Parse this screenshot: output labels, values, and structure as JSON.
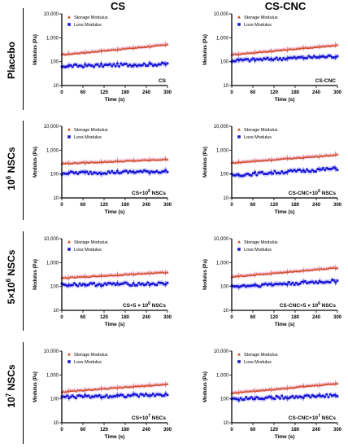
{
  "figure": {
    "columns": [
      "CS",
      "CS-CNC"
    ],
    "rows": [
      {
        "base": "Placebo",
        "sup": "",
        "suffix": ""
      },
      {
        "base": "10",
        "sup": "6",
        "suffix": " NSCs"
      },
      {
        "base": "5×10",
        "sup": "6",
        "suffix": " NSCs"
      },
      {
        "base": "10",
        "sup": "7",
        "suffix": " NSCs"
      }
    ]
  },
  "colors": {
    "storage": "#d04a22",
    "storage_band": "#f2b8e6",
    "loss": "#1a17d6",
    "loss_band": "#b4b4ff"
  },
  "chart_data": [
    {
      "type": "scatter",
      "panel_label": {
        "base": "CS",
        "sup": ""
      },
      "xlabel": "Time (s)",
      "ylabel": "Modulus (Pa)",
      "xlim": [
        0,
        300
      ],
      "ylim": [
        10,
        10000
      ],
      "yscale": "log",
      "xticks": [
        0,
        60,
        120,
        180,
        240,
        300
      ],
      "yticks": [
        10,
        100,
        1000,
        10000
      ],
      "ytick_labels": [
        "10",
        "100",
        "1,000",
        "10,000"
      ],
      "legend": "top-left",
      "series": [
        {
          "name": "Storage Modulus",
          "marker": "triangle",
          "start": 200,
          "end": 520
        },
        {
          "name": "Loss Modulus",
          "marker": "square",
          "start": 65,
          "end": 80
        }
      ]
    },
    {
      "type": "scatter",
      "panel_label": {
        "base": "CS-CNC",
        "sup": ""
      },
      "xlabel": "Time (s)",
      "ylabel": "Modulus (Pa)",
      "xlim": [
        0,
        300
      ],
      "ylim": [
        10,
        10000
      ],
      "yscale": "log",
      "xticks": [
        0,
        60,
        120,
        180,
        240,
        300
      ],
      "yticks": [
        10,
        100,
        1000,
        10000
      ],
      "ytick_labels": [
        "10",
        "100",
        "1,000",
        "10,000"
      ],
      "legend": "top-left",
      "series": [
        {
          "name": "Storage Modulus",
          "marker": "triangle",
          "start": 200,
          "end": 500
        },
        {
          "name": "Loss Modulus",
          "marker": "square",
          "start": 110,
          "end": 170
        }
      ]
    },
    {
      "type": "scatter",
      "panel_label": {
        "base": "CS+10",
        "sup": "6",
        "suffix": " NSCs"
      },
      "xlabel": "Time (s)",
      "ylabel": "Modulus (Pa)",
      "xlim": [
        0,
        300
      ],
      "ylim": [
        10,
        10000
      ],
      "yscale": "log",
      "xticks": [
        0,
        60,
        120,
        180,
        240,
        300
      ],
      "yticks": [
        10,
        100,
        1000,
        10000
      ],
      "ytick_labels": [
        "10",
        "100",
        "1,000",
        "10,000"
      ],
      "legend": "top-left",
      "series": [
        {
          "name": "Storage Modulus",
          "marker": "triangle",
          "start": 280,
          "end": 420
        },
        {
          "name": "Loss Modulus",
          "marker": "square",
          "start": 110,
          "end": 130
        }
      ]
    },
    {
      "type": "scatter",
      "panel_label": {
        "base": "CS-CNC+10",
        "sup": "6",
        "suffix": " NSCs"
      },
      "xlabel": "Time (s)",
      "ylabel": "Modulus (Pa)",
      "xlim": [
        0,
        300
      ],
      "ylim": [
        10,
        10000
      ],
      "yscale": "log",
      "xticks": [
        0,
        60,
        120,
        180,
        240,
        300
      ],
      "yticks": [
        10,
        100,
        1000,
        10000
      ],
      "ytick_labels": [
        "10",
        "100",
        "1,000",
        "10,000"
      ],
      "legend": "top-left",
      "series": [
        {
          "name": "Storage Modulus",
          "marker": "triangle",
          "start": 300,
          "end": 650
        },
        {
          "name": "Loss Modulus",
          "marker": "square",
          "start": 90,
          "end": 170
        }
      ]
    },
    {
      "type": "scatter",
      "panel_label": {
        "base": "CS+5 × 10",
        "sup": "6",
        "suffix": " NSCs"
      },
      "xlabel": "Time (s)",
      "ylabel": "Modulus (Pa)",
      "xlim": [
        0,
        300
      ],
      "ylim": [
        10,
        10000
      ],
      "yscale": "log",
      "xticks": [
        0,
        60,
        120,
        180,
        240,
        300
      ],
      "yticks": [
        10,
        100,
        1000,
        10000
      ],
      "ytick_labels": [
        "10",
        "100",
        "1,000",
        "10,000"
      ],
      "legend": "top-left",
      "series": [
        {
          "name": "Storage Modulus",
          "marker": "triangle",
          "start": 230,
          "end": 400
        },
        {
          "name": "Loss Modulus",
          "marker": "square",
          "start": 120,
          "end": 130
        }
      ]
    },
    {
      "type": "scatter",
      "panel_label": {
        "base": "CS-CNC+5 × 10",
        "sup": "6",
        "suffix": " NSCs"
      },
      "xlabel": "Time (s)",
      "ylabel": "Modulus (Pa)",
      "xlim": [
        0,
        300
      ],
      "ylim": [
        10,
        10000
      ],
      "yscale": "log",
      "xticks": [
        0,
        60,
        120,
        180,
        240,
        300
      ],
      "yticks": [
        10,
        100,
        1000,
        10000
      ],
      "ytick_labels": [
        "10",
        "100",
        "1,000",
        "10,000"
      ],
      "legend": "top-left",
      "series": [
        {
          "name": "Storage Modulus",
          "marker": "triangle",
          "start": 260,
          "end": 620
        },
        {
          "name": "Loss Modulus",
          "marker": "square",
          "start": 100,
          "end": 170
        }
      ]
    },
    {
      "type": "scatter",
      "panel_label": {
        "base": "CS+10",
        "sup": "7",
        "suffix": " NSCs"
      },
      "xlabel": "Time (s)",
      "ylabel": "Modulus (Pa)",
      "xlim": [
        0,
        300
      ],
      "ylim": [
        10,
        10000
      ],
      "yscale": "log",
      "xticks": [
        0,
        60,
        120,
        180,
        240,
        300
      ],
      "yticks": [
        10,
        100,
        1000,
        10000
      ],
      "ytick_labels": [
        "10",
        "100",
        "1,000",
        "10,000"
      ],
      "legend": "top-left",
      "series": [
        {
          "name": "Storage Modulus",
          "marker": "triangle",
          "start": 200,
          "end": 420
        },
        {
          "name": "Loss Modulus",
          "marker": "square",
          "start": 120,
          "end": 150
        }
      ]
    },
    {
      "type": "scatter",
      "panel_label": {
        "base": "CS-CNC+10",
        "sup": "7",
        "suffix": " NSCs"
      },
      "xlabel": "Time (s)",
      "ylabel": "Modulus (Pa)",
      "xlim": [
        0,
        300
      ],
      "ylim": [
        10,
        10000
      ],
      "yscale": "log",
      "xticks": [
        0,
        60,
        120,
        180,
        240,
        300
      ],
      "yticks": [
        10,
        100,
        1000,
        10000
      ],
      "ytick_labels": [
        "10",
        "100",
        "1,000",
        "10,000"
      ],
      "legend": "top-left",
      "series": [
        {
          "name": "Storage Modulus",
          "marker": "triangle",
          "start": 180,
          "end": 450
        },
        {
          "name": "Loss Modulus",
          "marker": "square",
          "start": 100,
          "end": 140
        }
      ]
    }
  ]
}
